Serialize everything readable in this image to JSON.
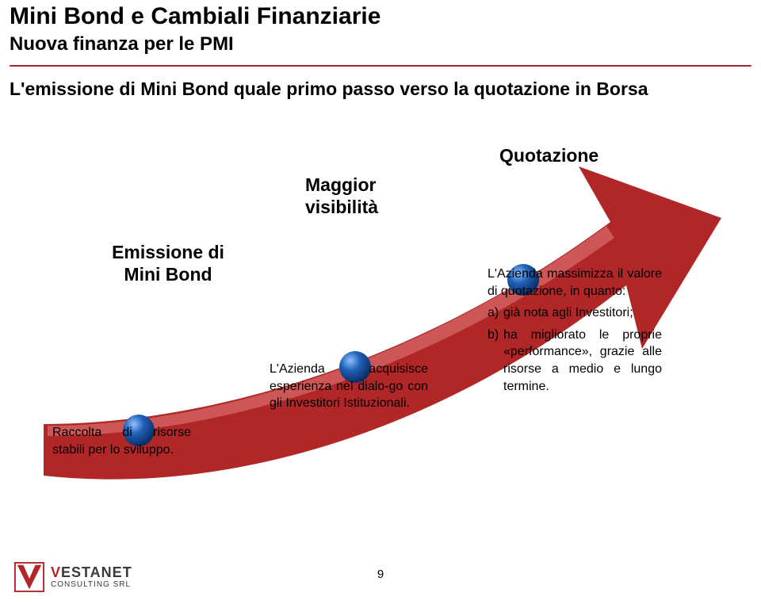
{
  "header": {
    "title": "Mini Bond e Cambiali Finanziarie",
    "subtitle": "Nuova finanza per le PMI",
    "divider_color": "#9e2b2e"
  },
  "intro": "L'emissione di Mini Bond quale primo passo verso la quotazione in Borsa",
  "arrow": {
    "type": "infographic",
    "fill_color": "#b12626",
    "highlight_color": "#e3807f",
    "node_fill": "#1f60b6",
    "node_highlight": "#7fb0f0",
    "steps": [
      {
        "key": "emissione",
        "label": "Emissione di\nMini Bond"
      },
      {
        "key": "maggior",
        "label": "Maggior\nvisibilità"
      },
      {
        "key": "quotazione",
        "label": "Quotazione"
      }
    ]
  },
  "notes": {
    "raccolta": "Raccolta di risorse stabili per lo sviluppo.",
    "acquisisce": "L'Azienda acquisisce esperienza nel dialo-go con gli Investitori Istituzionali.",
    "massimizza": {
      "lead": "L'Azienda massimizza il valore di quotazione, in quanto:",
      "a_key": "a)",
      "a": "già nota agli Investitori;",
      "b_key": "b)",
      "b": "ha migliorato le proprie «performance», grazie alle risorse a medio e lungo termine."
    }
  },
  "footer": {
    "page": "9",
    "logo": {
      "v_letter": "V",
      "rest": "ESTANET",
      "sub": "CONSULTING SRL",
      "v_color": "#b22626",
      "text_color": "#3a3a3a",
      "border_color": "#b22626"
    }
  }
}
